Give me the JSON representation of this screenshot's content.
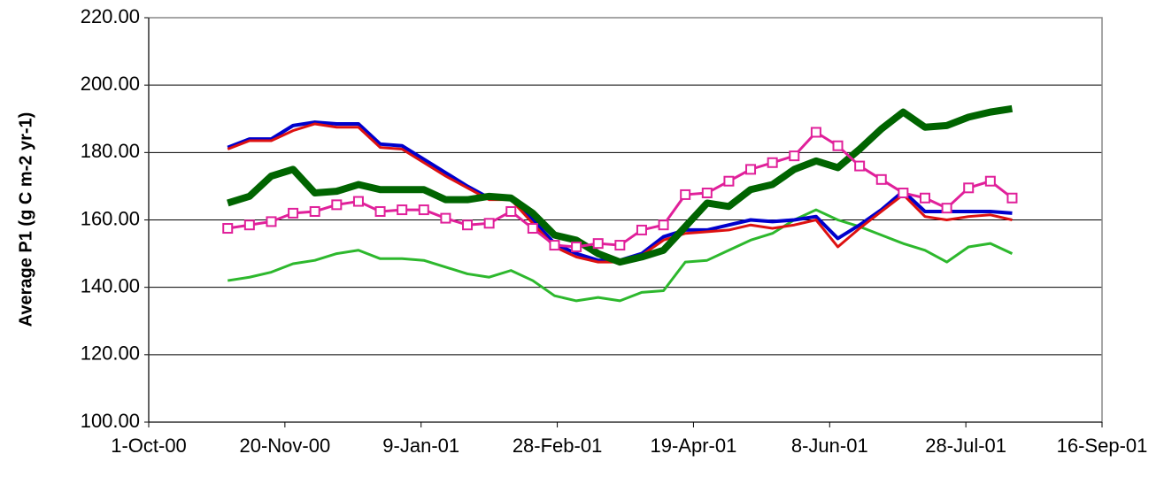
{
  "chart_data": {
    "type": "line",
    "y_label": "Average P1 (g C m-2 yr-1)",
    "x": [
      "2000-10-30",
      "2000-11-07",
      "2000-11-15",
      "2000-11-23",
      "2000-12-01",
      "2000-12-09",
      "2000-12-17",
      "2000-12-25",
      "2001-01-02",
      "2001-01-10",
      "2001-01-18",
      "2001-01-26",
      "2001-02-03",
      "2001-02-11",
      "2001-02-19",
      "2001-02-27",
      "2001-03-07",
      "2001-03-15",
      "2001-03-23",
      "2001-03-31",
      "2001-04-08",
      "2001-04-16",
      "2001-04-24",
      "2001-05-02",
      "2001-05-10",
      "2001-05-18",
      "2001-05-26",
      "2001-06-03",
      "2001-06-11",
      "2001-06-19",
      "2001-06-27",
      "2001-07-05",
      "2001-07-13",
      "2001-07-21",
      "2001-07-29",
      "2001-08-06",
      "2001-08-14"
    ],
    "series": [
      {
        "color": "#2db82d",
        "width": 3,
        "values": [
          142,
          143,
          144.5,
          147,
          148,
          150,
          151,
          148.5,
          148.5,
          148,
          146,
          144,
          143,
          145,
          142,
          137.5,
          136,
          137,
          136,
          138.5,
          139,
          147.5,
          148,
          151,
          154,
          156,
          160,
          163,
          160,
          158,
          155.5,
          153,
          151,
          147.5,
          152,
          153,
          150
        ]
      },
      {
        "color": "#0000cc",
        "width": 4,
        "values": [
          181.5,
          184,
          184,
          188,
          189,
          188.5,
          188.5,
          182.5,
          182,
          178,
          174,
          170,
          166.5,
          166.5,
          160,
          153,
          150,
          148,
          148,
          150,
          155,
          157,
          157,
          158.5,
          160,
          159.5,
          160,
          161,
          154.5,
          158.5,
          163,
          168.5,
          162.5,
          162.5,
          162.5,
          162.5,
          162
        ]
      },
      {
        "color": "#dd1111",
        "width": 3,
        "values": [
          181,
          183.5,
          183.5,
          186.5,
          188.5,
          187.5,
          187.5,
          181.5,
          181,
          177,
          173,
          169.5,
          166,
          166,
          159,
          152,
          149,
          147.5,
          147.5,
          149.5,
          154,
          156,
          156.5,
          157,
          158.5,
          157.5,
          158.5,
          160,
          152,
          157.5,
          162.5,
          167.5,
          161,
          160,
          161,
          161.5,
          160
        ]
      },
      {
        "color": "#006400",
        "width": 8,
        "values": [
          165,
          167,
          173,
          175,
          168,
          168.5,
          170.5,
          169,
          169,
          169,
          166,
          166,
          167,
          166.5,
          162,
          155.5,
          154,
          150,
          147.5,
          149,
          151,
          158,
          165,
          164,
          169,
          170.5,
          175,
          177.5,
          175.5,
          181,
          187,
          192,
          187.5,
          188,
          190.5,
          192,
          193
        ]
      },
      {
        "color": "#e0209a",
        "width": 3,
        "marker": "square",
        "values": [
          157.5,
          158.5,
          159.5,
          162,
          162.5,
          164.5,
          165.5,
          162.5,
          163,
          163,
          160.5,
          158.5,
          159,
          162.5,
          157.5,
          152.5,
          152,
          153,
          152.5,
          157,
          158.5,
          167.5,
          168,
          171.5,
          175,
          177,
          179,
          186,
          182,
          176,
          172,
          168,
          166.5,
          163.5,
          169.5,
          171.5,
          166.5
        ]
      }
    ],
    "xlim": [
      "2000-10-01",
      "2001-09-16"
    ],
    "xticks": [
      {
        "value": "2000-10-01",
        "label": "1-Oct-00"
      },
      {
        "value": "2000-11-20",
        "label": "20-Nov-00"
      },
      {
        "value": "2001-01-09",
        "label": "9-Jan-01"
      },
      {
        "value": "2001-02-28",
        "label": "28-Feb-01"
      },
      {
        "value": "2001-04-19",
        "label": "19-Apr-01"
      },
      {
        "value": "2001-06-08",
        "label": "8-Jun-01"
      },
      {
        "value": "2001-07-28",
        "label": "28-Jul-01"
      },
      {
        "value": "2001-09-16",
        "label": "16-Sep-01"
      }
    ],
    "ylim": [
      100,
      220
    ],
    "yticks": [
      {
        "value": 100,
        "label": "100.00"
      },
      {
        "value": 120,
        "label": "120.00"
      },
      {
        "value": 140,
        "label": "140.00"
      },
      {
        "value": 160,
        "label": "160.00"
      },
      {
        "value": 180,
        "label": "180.00"
      },
      {
        "value": 200,
        "label": "200.00"
      },
      {
        "value": 220,
        "label": "220.00"
      }
    ],
    "grid": true
  }
}
